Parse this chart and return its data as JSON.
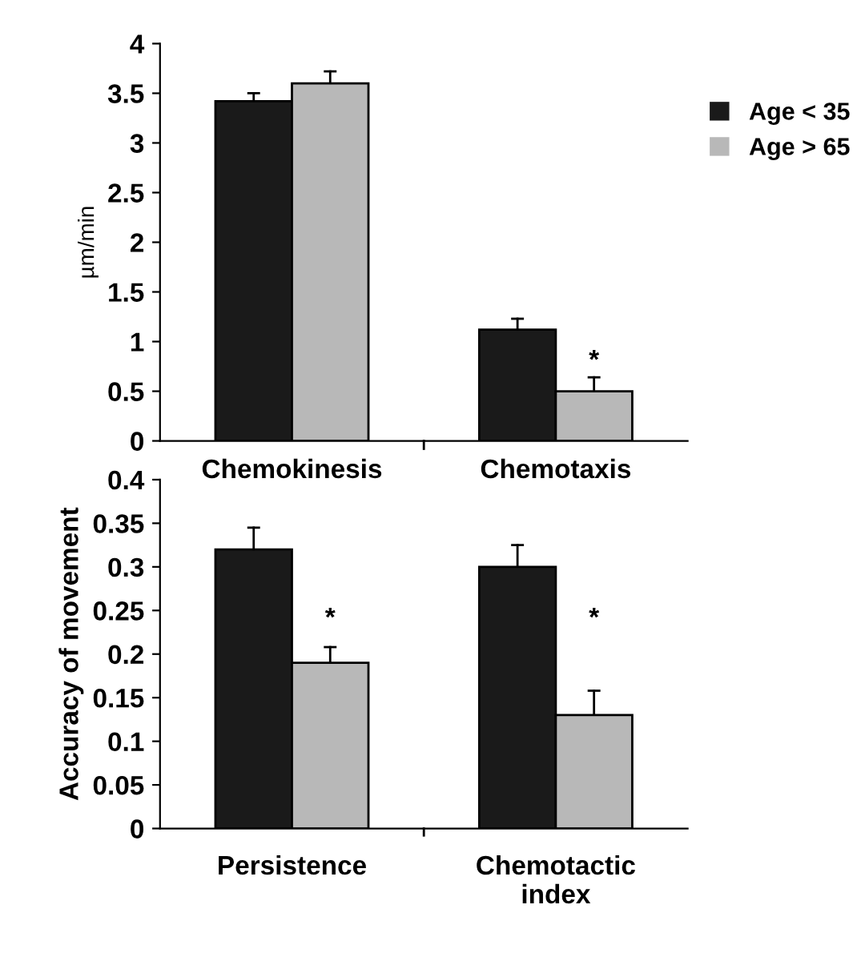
{
  "chart_data": [
    {
      "type": "bar",
      "categories": [
        "Chemokinesis",
        "Chemotaxis"
      ],
      "ylabel": "µm/min",
      "ylim": [
        0,
        4
      ],
      "yticks": [
        0,
        0.5,
        1,
        1.5,
        2,
        2.5,
        3,
        3.5,
        4
      ],
      "legend": "right",
      "grid": false,
      "series": [
        {
          "name": "Age < 35",
          "color": "#1a1a1a",
          "values": [
            3.42,
            1.12
          ],
          "errors": [
            [
              3.42,
              3.5
            ],
            [
              1.12,
              1.23
            ]
          ]
        },
        {
          "name": "Age > 65",
          "color": "#b8b8b8",
          "values": [
            3.6,
            0.5
          ],
          "errors": [
            [
              3.6,
              3.72
            ],
            [
              0.5,
              0.64
            ]
          ]
        }
      ],
      "annotations": [
        {
          "text": "*",
          "x": "Chemotaxis",
          "y": 0.8
        }
      ]
    },
    {
      "type": "bar",
      "categories": [
        "Persistence",
        "Chemotactic\nindex"
      ],
      "ylabel": "Accuracy of movement",
      "ylim": [
        0,
        0.4
      ],
      "yticks": [
        0,
        0.05,
        0.1,
        0.15,
        0.2,
        0.25,
        0.3,
        0.35,
        0.4
      ],
      "legend": false,
      "grid": false,
      "series": [
        {
          "color": "#1a1a1a",
          "values": [
            0.32,
            0.3
          ],
          "errors": [
            [
              0.32,
              0.345
            ],
            [
              0.3,
              0.325
            ]
          ]
        },
        {
          "color": "#b8b8b8",
          "values": [
            0.19,
            0.13
          ],
          "errors": [
            [
              0.19,
              0.208
            ],
            [
              0.13,
              0.158
            ]
          ]
        }
      ],
      "annotations": [
        {
          "text": "*",
          "x": "Persistence",
          "y": 0.24
        },
        {
          "text": "*",
          "x": "Chemotactic\nindex",
          "y": 0.24
        }
      ]
    }
  ]
}
